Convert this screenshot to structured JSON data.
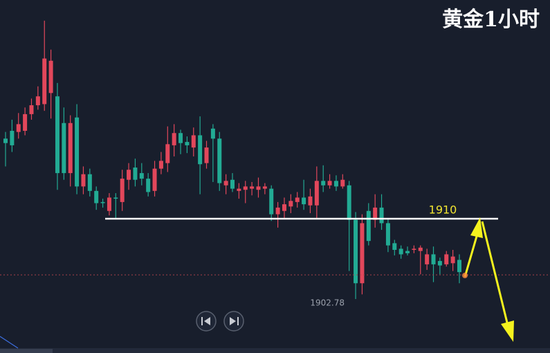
{
  "chart_data": {
    "type": "candlestick",
    "title": "黄金1小时",
    "up_color": "#e2475b",
    "down_color": "#22ab94",
    "ylim": [
      1897.93,
      1929.66
    ],
    "open": [
      1917.2,
      1917.9,
      1917.8,
      1917.9,
      1919.4,
      1920.2,
      1920.3,
      1921.3,
      1921.0,
      1918.6,
      1914.1,
      1919.1,
      1912.9,
      1914.0,
      1912.5,
      1911.5,
      1910.7,
      1911.9,
      1911.5,
      1913.5,
      1914.6,
      1914.1,
      1913.6,
      1912.5,
      1914.5,
      1915.0,
      1916.6,
      1917.7,
      1916.9,
      1916.4,
      1917.5,
      1915.0,
      1918.1,
      1917.2,
      1913.0,
      1913.5,
      1912.5,
      1912.6,
      1912.7,
      1912.6,
      1912.7,
      1912.7,
      1910.4,
      1910.7,
      1911.1,
      1911.5,
      1911.9,
      1911.2,
      1911.2,
      1913.4,
      1913.0,
      1913.4,
      1912.9,
      1913.0,
      1909.9,
      1904.2,
      1910.7,
      1909.9,
      1911.0,
      1909.6,
      1907.8,
      1907.3,
      1907.1,
      1907.2,
      1907.1,
      1905.9,
      1906.8,
      1906.2,
      1905.9,
      1906.0,
      1906.3
    ],
    "high": [
      1917.8,
      1918.9,
      1919.5,
      1920.0,
      1920.8,
      1921.9,
      1927.8,
      1925.2,
      1922.2,
      1920.0,
      1919.3,
      1920.3,
      1914.7,
      1914.5,
      1912.9,
      1911.8,
      1912.3,
      1912.3,
      1914.4,
      1915.0,
      1915.4,
      1915.0,
      1914.1,
      1915.2,
      1916.0,
      1918.3,
      1918.5,
      1918.0,
      1917.4,
      1918.2,
      1919.2,
      1917.0,
      1918.5,
      1917.8,
      1914.0,
      1914.1,
      1913.2,
      1913.4,
      1913.3,
      1913.7,
      1913.2,
      1913.0,
      1911.5,
      1911.9,
      1912.2,
      1912.4,
      1913.5,
      1912.7,
      1914.7,
      1914.8,
      1914.0,
      1913.9,
      1914.0,
      1913.4,
      1910.6,
      1910.4,
      1911.4,
      1912.2,
      1912.2,
      1910.0,
      1908.1,
      1907.6,
      1907.5,
      1907.6,
      1907.6,
      1907.3,
      1907.5,
      1906.5,
      1907.1,
      1907.2,
      1906.8
    ],
    "low": [
      1914.7,
      1916.0,
      1917.2,
      1917.5,
      1918.9,
      1919.8,
      1919.7,
      1919.0,
      1912.6,
      1913.5,
      1912.9,
      1912.2,
      1912.2,
      1912.0,
      1910.8,
      1911.0,
      1910.3,
      1910.0,
      1910.7,
      1912.6,
      1912.9,
      1913.0,
      1912.0,
      1912.0,
      1914.0,
      1914.2,
      1915.6,
      1915.8,
      1915.9,
      1915.6,
      1912.2,
      1914.5,
      1913.3,
      1912.5,
      1912.2,
      1912.4,
      1911.8,
      1911.4,
      1912.1,
      1911.9,
      1912.2,
      1909.8,
      1909.2,
      1910.0,
      1910.5,
      1911.0,
      1910.8,
      1910.5,
      1910.0,
      1912.4,
      1912.7,
      1912.5,
      1912.7,
      1905.3,
      1902.78,
      1903.2,
      1907.6,
      1909.2,
      1909.0,
      1907.0,
      1906.7,
      1906.4,
      1906.7,
      1906.9,
      1905.0,
      1905.4,
      1904.3,
      1905.0,
      1905.7,
      1905.3,
      1904.2
    ],
    "close": [
      1916.8,
      1916.6,
      1918.5,
      1919.4,
      1920.2,
      1921.0,
      1924.4,
      1924.2,
      1914.1,
      1914.1,
      1918.6,
      1912.9,
      1914.0,
      1912.5,
      1911.4,
      1911.4,
      1911.9,
      1911.8,
      1913.6,
      1914.4,
      1913.5,
      1913.6,
      1912.4,
      1914.5,
      1915.2,
      1916.7,
      1917.7,
      1916.8,
      1916.6,
      1917.5,
      1914.9,
      1916.4,
      1917.2,
      1913.2,
      1913.4,
      1912.7,
      1912.7,
      1912.9,
      1912.9,
      1912.9,
      1912.9,
      1910.4,
      1911.0,
      1911.3,
      1911.6,
      1911.9,
      1911.3,
      1912.0,
      1913.4,
      1913.0,
      1913.4,
      1912.9,
      1913.5,
      1909.9,
      1904.2,
      1909.6,
      1908.0,
      1911.0,
      1909.6,
      1907.6,
      1907.2,
      1906.8,
      1906.9,
      1907.3,
      1907.4,
      1906.8,
      1905.9,
      1905.8,
      1906.8,
      1906.6,
      1905.2
    ],
    "level": 1910,
    "level_color": "#ffffff",
    "level_label_color": "#f2e531",
    "last_price": 1904.95,
    "last_price_color": "#a8404a",
    "low_label": 1902.78
  }
}
